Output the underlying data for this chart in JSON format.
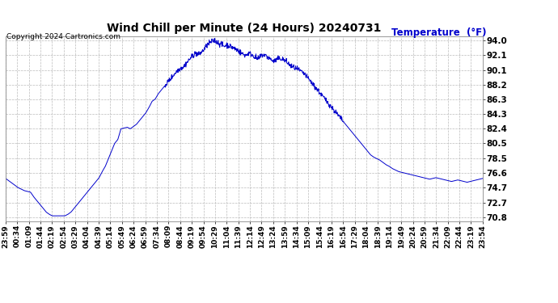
{
  "title": "Wind Chill per Minute (24 Hours) 20240731",
  "ylabel": "Temperature  (°F)",
  "ylabel_color": "#0000cc",
  "copyright_text": "Copyright 2024 Cartronics.com",
  "line_color": "#0000cc",
  "background_color": "#ffffff",
  "grid_color": "#bbbbbb",
  "yticks": [
    70.8,
    72.7,
    74.7,
    76.6,
    78.5,
    80.5,
    82.4,
    84.3,
    86.3,
    88.2,
    90.1,
    92.1,
    94.0
  ],
  "ylim": [
    70.3,
    94.5
  ],
  "xtick_labels": [
    "23:59",
    "00:34",
    "01:09",
    "01:44",
    "02:19",
    "02:54",
    "03:29",
    "04:04",
    "04:39",
    "05:14",
    "05:49",
    "06:24",
    "06:59",
    "07:34",
    "08:09",
    "08:44",
    "09:19",
    "09:54",
    "10:29",
    "11:04",
    "11:39",
    "12:14",
    "12:49",
    "13:24",
    "13:59",
    "14:34",
    "15:09",
    "15:44",
    "16:19",
    "16:54",
    "17:29",
    "18:04",
    "18:39",
    "19:14",
    "19:49",
    "20:24",
    "20:59",
    "21:34",
    "22:09",
    "22:44",
    "23:19",
    "23:54"
  ],
  "wind_chill_data": [
    75.9,
    75.6,
    75.3,
    75.0,
    74.7,
    74.5,
    74.3,
    74.2,
    74.1,
    73.5,
    73.0,
    72.5,
    72.0,
    71.5,
    71.2,
    71.0,
    71.0,
    71.0,
    71.0,
    71.0,
    71.2,
    71.5,
    72.0,
    72.5,
    73.0,
    73.5,
    74.0,
    74.5,
    75.0,
    75.5,
    76.0,
    76.8,
    77.5,
    78.5,
    79.5,
    80.5,
    81.0,
    82.4,
    82.5,
    82.6,
    82.4,
    82.7,
    83.0,
    83.5,
    84.0,
    84.5,
    85.2,
    86.0,
    86.3,
    87.0,
    87.5,
    88.0,
    88.5,
    89.0,
    89.5,
    90.0,
    90.3,
    90.5,
    91.0,
    91.5,
    92.0,
    92.3,
    92.1,
    92.5,
    93.0,
    93.5,
    93.8,
    94.0,
    93.7,
    93.5,
    93.2,
    93.4,
    93.2,
    93.0,
    92.8,
    92.5,
    92.2,
    92.0,
    92.3,
    92.1,
    91.8,
    91.5,
    92.0,
    92.1,
    91.8,
    91.5,
    91.2,
    91.5,
    91.6,
    91.5,
    91.2,
    90.8,
    90.5,
    90.3,
    90.1,
    89.8,
    89.5,
    89.0,
    88.5,
    88.0,
    87.5,
    87.0,
    86.5,
    86.0,
    85.5,
    85.0,
    84.5,
    84.0,
    83.5,
    83.0,
    82.5,
    82.0,
    81.5,
    81.0,
    80.5,
    80.0,
    79.5,
    79.0,
    78.7,
    78.5,
    78.3,
    78.0,
    77.7,
    77.5,
    77.2,
    77.0,
    76.8,
    76.7,
    76.6,
    76.5,
    76.4,
    76.3,
    76.2,
    76.1,
    76.0,
    75.9,
    75.8,
    75.9,
    76.0,
    75.9,
    75.8,
    75.7,
    75.6,
    75.5,
    75.6,
    75.7,
    75.6,
    75.5,
    75.4,
    75.5,
    75.6,
    75.7,
    75.8,
    75.9
  ]
}
